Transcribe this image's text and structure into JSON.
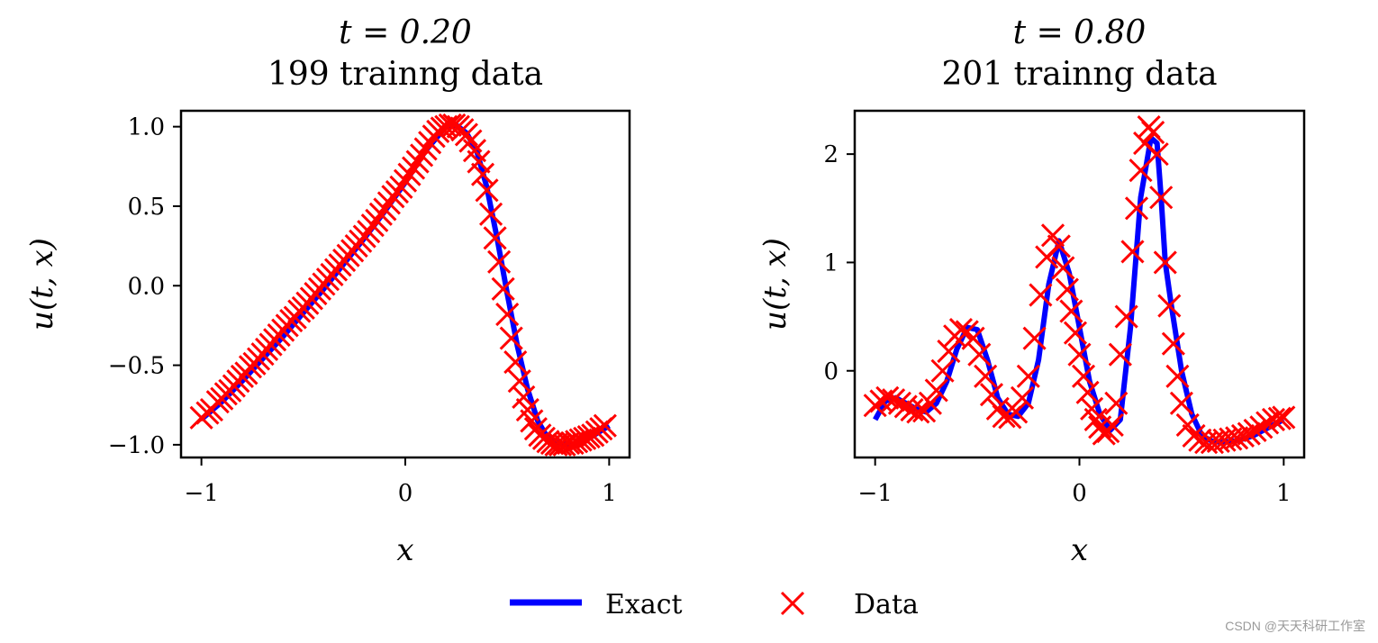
{
  "colors": {
    "exact": "#0000ff",
    "data": "#ff0000",
    "axes": "#000000",
    "background": "#ffffff"
  },
  "legend": {
    "exact_label": "Exact",
    "data_label": "Data",
    "placement": "bottom-center"
  },
  "watermark": "CSDN @天天科研工作室",
  "chart_data": [
    {
      "type": "line+scatter",
      "title_line1": "t = 0.20",
      "title_line2": "199 trainng data",
      "xlabel": "x",
      "ylabel": "u(t, x)",
      "xlim": [
        -1.1,
        1.1
      ],
      "ylim": [
        -1.08,
        1.1
      ],
      "xticks": [
        -1,
        0,
        1
      ],
      "xtick_labels": [
        "−1",
        "0",
        "1"
      ],
      "yticks": [
        1.0,
        0.5,
        0.0,
        -0.5,
        -1.0
      ],
      "ytick_labels": [
        "1.0",
        "0.5",
        "0.0",
        "−0.5",
        "−1.0"
      ],
      "grid": false,
      "series": [
        {
          "name": "Exact",
          "kind": "line",
          "x": [
            -1.0,
            -0.9,
            -0.8,
            -0.7,
            -0.6,
            -0.5,
            -0.4,
            -0.3,
            -0.2,
            -0.1,
            0.0,
            0.1,
            0.2,
            0.25,
            0.3,
            0.35,
            0.4,
            0.45,
            0.5,
            0.55,
            0.6,
            0.65,
            0.7,
            0.75,
            0.8,
            0.85,
            0.9,
            0.95,
            1.0
          ],
          "y": [
            -0.84,
            -0.73,
            -0.6,
            -0.46,
            -0.32,
            -0.17,
            -0.02,
            0.14,
            0.3,
            0.47,
            0.65,
            0.85,
            1.0,
            1.01,
            0.96,
            0.85,
            0.62,
            0.3,
            -0.05,
            -0.38,
            -0.65,
            -0.85,
            -0.96,
            -0.99,
            -1.0,
            -0.99,
            -0.96,
            -0.92,
            -0.88
          ]
        },
        {
          "name": "Data",
          "kind": "scatter",
          "x": [
            -1.0,
            -0.97,
            -0.95,
            -0.92,
            -0.9,
            -0.88,
            -0.86,
            -0.84,
            -0.82,
            -0.8,
            -0.78,
            -0.76,
            -0.74,
            -0.72,
            -0.7,
            -0.68,
            -0.66,
            -0.64,
            -0.62,
            -0.6,
            -0.58,
            -0.56,
            -0.54,
            -0.52,
            -0.5,
            -0.48,
            -0.46,
            -0.44,
            -0.42,
            -0.4,
            -0.38,
            -0.36,
            -0.34,
            -0.32,
            -0.3,
            -0.28,
            -0.26,
            -0.24,
            -0.22,
            -0.2,
            -0.18,
            -0.16,
            -0.14,
            -0.12,
            -0.1,
            -0.08,
            -0.06,
            -0.04,
            -0.02,
            0.0,
            0.02,
            0.04,
            0.06,
            0.08,
            0.1,
            0.12,
            0.14,
            0.16,
            0.18,
            0.2,
            0.22,
            0.24,
            0.26,
            0.28,
            0.3,
            0.32,
            0.34,
            0.36,
            0.38,
            0.4,
            0.42,
            0.44,
            0.46,
            0.48,
            0.5,
            0.52,
            0.54,
            0.56,
            0.58,
            0.6,
            0.62,
            0.64,
            0.66,
            0.68,
            0.7,
            0.72,
            0.74,
            0.76,
            0.78,
            0.8,
            0.82,
            0.84,
            0.86,
            0.88,
            0.9,
            0.92,
            0.94,
            0.96,
            0.98
          ],
          "y": [
            -0.83,
            -0.8,
            -0.78,
            -0.73,
            -0.71,
            -0.68,
            -0.66,
            -0.63,
            -0.6,
            -0.57,
            -0.55,
            -0.51,
            -0.49,
            -0.46,
            -0.43,
            -0.4,
            -0.37,
            -0.34,
            -0.31,
            -0.28,
            -0.25,
            -0.22,
            -0.2,
            -0.16,
            -0.14,
            -0.11,
            -0.08,
            -0.05,
            -0.02,
            0.01,
            0.04,
            0.07,
            0.1,
            0.13,
            0.16,
            0.19,
            0.22,
            0.25,
            0.28,
            0.31,
            0.34,
            0.38,
            0.41,
            0.45,
            0.48,
            0.52,
            0.56,
            0.59,
            0.62,
            0.66,
            0.7,
            0.74,
            0.78,
            0.82,
            0.86,
            0.9,
            0.94,
            0.97,
            0.99,
            1.0,
            1.01,
            1.01,
            1.0,
            0.98,
            0.95,
            0.91,
            0.85,
            0.78,
            0.7,
            0.6,
            0.45,
            0.3,
            0.15,
            -0.02,
            -0.18,
            -0.33,
            -0.48,
            -0.6,
            -0.7,
            -0.78,
            -0.85,
            -0.9,
            -0.94,
            -0.96,
            -0.98,
            -0.99,
            -1.0,
            -1.0,
            -1.0,
            -0.99,
            -0.99,
            -0.98,
            -0.97,
            -0.96,
            -0.95,
            -0.94,
            -0.92,
            -0.9,
            -0.88
          ]
        }
      ]
    },
    {
      "type": "line+scatter",
      "title_line1": "t = 0.80",
      "title_line2": "201 trainng data",
      "xlabel": "x",
      "ylabel": "u(t, x)",
      "xlim": [
        -1.1,
        1.1
      ],
      "ylim": [
        -0.8,
        2.4
      ],
      "xticks": [
        -1,
        0,
        1
      ],
      "xtick_labels": [
        "−1",
        "0",
        "1"
      ],
      "yticks": [
        2,
        1,
        0
      ],
      "ytick_labels": [
        "2",
        "1",
        "0"
      ],
      "grid": false,
      "series": [
        {
          "name": "Exact",
          "kind": "line",
          "x": [
            -1.0,
            -0.95,
            -0.9,
            -0.85,
            -0.8,
            -0.75,
            -0.7,
            -0.65,
            -0.6,
            -0.55,
            -0.5,
            -0.45,
            -0.4,
            -0.35,
            -0.3,
            -0.25,
            -0.2,
            -0.15,
            -0.1,
            -0.05,
            0.0,
            0.05,
            0.1,
            0.15,
            0.2,
            0.25,
            0.3,
            0.35,
            0.38,
            0.4,
            0.42,
            0.45,
            0.5,
            0.55,
            0.6,
            0.65,
            0.7,
            0.75,
            0.8,
            0.85,
            0.9,
            0.95,
            1.0
          ],
          "y": [
            -0.45,
            -0.28,
            -0.25,
            -0.3,
            -0.35,
            -0.38,
            -0.3,
            -0.1,
            0.2,
            0.4,
            0.38,
            0.1,
            -0.25,
            -0.4,
            -0.42,
            -0.3,
            0.1,
            0.8,
            1.2,
            0.9,
            0.4,
            -0.1,
            -0.4,
            -0.55,
            -0.45,
            0.4,
            1.6,
            2.15,
            2.1,
            1.6,
            1.0,
            0.6,
            0.0,
            -0.4,
            -0.6,
            -0.65,
            -0.66,
            -0.65,
            -0.63,
            -0.6,
            -0.55,
            -0.5,
            -0.45
          ]
        },
        {
          "name": "Data",
          "kind": "scatter",
          "x": [
            -1.0,
            -0.97,
            -0.94,
            -0.91,
            -0.88,
            -0.85,
            -0.82,
            -0.79,
            -0.76,
            -0.73,
            -0.7,
            -0.67,
            -0.64,
            -0.61,
            -0.58,
            -0.55,
            -0.52,
            -0.49,
            -0.46,
            -0.43,
            -0.4,
            -0.37,
            -0.34,
            -0.31,
            -0.28,
            -0.25,
            -0.22,
            -0.19,
            -0.16,
            -0.13,
            -0.1,
            -0.08,
            -0.06,
            -0.04,
            -0.02,
            0.0,
            0.02,
            0.04,
            0.06,
            0.08,
            0.1,
            0.12,
            0.14,
            0.16,
            0.18,
            0.2,
            0.23,
            0.26,
            0.28,
            0.3,
            0.32,
            0.34,
            0.36,
            0.38,
            0.4,
            0.42,
            0.44,
            0.46,
            0.48,
            0.5,
            0.53,
            0.56,
            0.59,
            0.62,
            0.65,
            0.68,
            0.71,
            0.74,
            0.77,
            0.8,
            0.83,
            0.86,
            0.89,
            0.92,
            0.95,
            0.98,
            1.0
          ],
          "y": [
            -0.32,
            -0.28,
            -0.25,
            -0.27,
            -0.3,
            -0.33,
            -0.36,
            -0.38,
            -0.37,
            -0.3,
            -0.18,
            0.0,
            0.18,
            0.32,
            0.38,
            0.36,
            0.3,
            0.15,
            -0.05,
            -0.22,
            -0.35,
            -0.42,
            -0.43,
            -0.38,
            -0.25,
            -0.05,
            0.3,
            0.7,
            1.05,
            1.25,
            1.15,
            0.95,
            0.75,
            0.55,
            0.35,
            0.15,
            -0.05,
            -0.2,
            -0.35,
            -0.45,
            -0.52,
            -0.58,
            -0.56,
            -0.5,
            -0.3,
            0.15,
            0.5,
            1.1,
            1.5,
            1.85,
            2.1,
            2.25,
            2.2,
            2.0,
            1.6,
            1.0,
            0.6,
            0.25,
            -0.05,
            -0.3,
            -0.5,
            -0.6,
            -0.64,
            -0.66,
            -0.66,
            -0.65,
            -0.64,
            -0.63,
            -0.62,
            -0.6,
            -0.58,
            -0.55,
            -0.52,
            -0.48,
            -0.45,
            -0.44,
            -0.43
          ]
        }
      ]
    }
  ]
}
